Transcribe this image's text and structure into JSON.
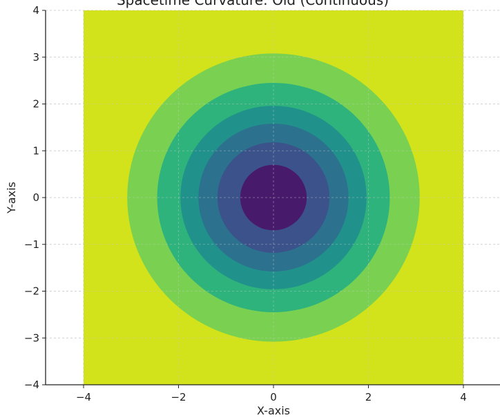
{
  "chart_data": {
    "type": "heatmap",
    "title": "Spacetime Curvature: Old (Continuous)",
    "xlabel": "X-axis",
    "ylabel": "Y-axis",
    "xlim": [
      -4.8,
      4.8
    ],
    "ylim": [
      -4,
      4
    ],
    "xticks": [
      -4,
      -2,
      0,
      2,
      4
    ],
    "yticks": [
      -4,
      -3,
      -2,
      -1,
      0,
      1,
      2,
      3,
      4
    ],
    "xtick_labels": [
      "−4",
      "−2",
      "0",
      "2",
      "4"
    ],
    "ytick_labels": [
      "−4",
      "−3",
      "−2",
      "−1",
      "0",
      "1",
      "2",
      "3",
      "4"
    ],
    "grid": true,
    "field_extent": {
      "x": [
        -4,
        4
      ],
      "y": [
        -4,
        4
      ]
    },
    "background_color": "#d2e21b",
    "contour_levels": [
      {
        "radius": 3.08,
        "color": "#7ad151"
      },
      {
        "radius": 2.45,
        "color": "#2eb37c"
      },
      {
        "radius": 1.96,
        "color": "#21918c"
      },
      {
        "radius": 1.58,
        "color": "#2c728e"
      },
      {
        "radius": 1.18,
        "color": "#3b528b"
      },
      {
        "radius": 0.7,
        "color": "#481a6c"
      }
    ]
  }
}
